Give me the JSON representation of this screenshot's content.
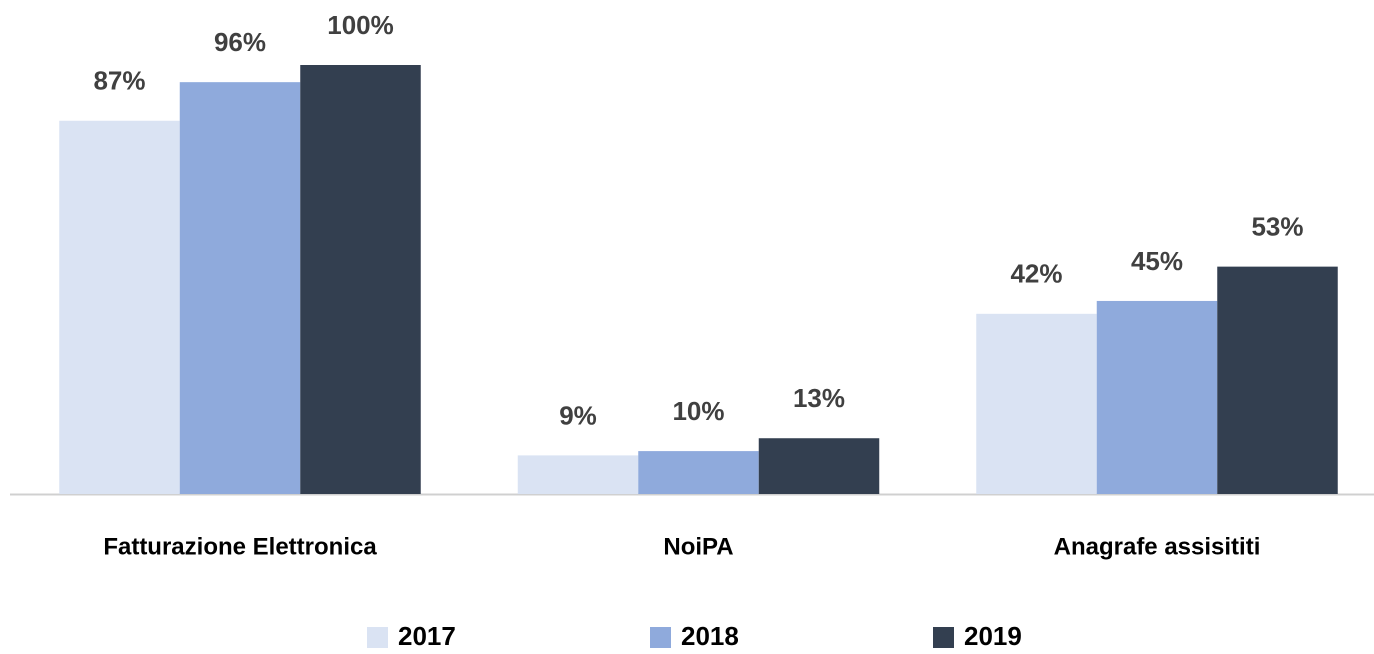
{
  "chart_data": {
    "type": "bar",
    "categories": [
      "Fatturazione Elettronica",
      "NoiPA",
      "Anagrafe assisititi"
    ],
    "series": [
      {
        "name": "2017",
        "color": "#dae3f3",
        "values": [
          87,
          9,
          42
        ],
        "value_labels": [
          "87%",
          "9%",
          "42%"
        ]
      },
      {
        "name": "2018",
        "color": "#8faadc",
        "values": [
          96,
          10,
          45
        ],
        "value_labels": [
          "96%",
          "10%",
          "45%"
        ]
      },
      {
        "name": "2019",
        "color": "#333f50",
        "values": [
          100,
          13,
          53
        ],
        "value_labels": [
          "100%",
          "13%",
          "53%"
        ]
      }
    ]
  }
}
